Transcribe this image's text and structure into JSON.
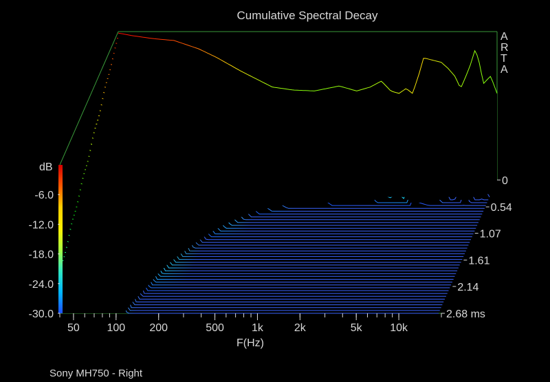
{
  "chart_data": {
    "type": "waterfall",
    "title": "Cumulative Spectral Decay",
    "watermark": "ARTA",
    "xlabel": "F(Hz)",
    "x_scale": "log",
    "x_ticks": [
      "50",
      "100",
      "200",
      "500",
      "1k",
      "2k",
      "5k",
      "10k"
    ],
    "x_tick_values": [
      50,
      100,
      200,
      500,
      1000,
      2000,
      5000,
      10000
    ],
    "xlim": [
      40,
      20000
    ],
    "ylabel": "dB",
    "y_ticks": [
      "-6.0",
      "-12.0",
      "-18.0",
      "-24.0",
      "-30.0"
    ],
    "y_tick_values": [
      -6,
      -12,
      -18,
      -24,
      -30
    ],
    "ylim": [
      -30,
      0
    ],
    "time_ticks": [
      "0",
      "0.54",
      "1.07",
      "1.61",
      "2.14",
      "2.68 ms"
    ],
    "time_tick_values": [
      0,
      0.54,
      1.07,
      1.61,
      2.14,
      2.68
    ],
    "time_unit": "ms",
    "time_range": [
      0,
      2.68
    ],
    "slice_count": 48,
    "first_slice": {
      "freq_hz": [
        40,
        50,
        70,
        100,
        150,
        200,
        300,
        500,
        700,
        1000,
        1500,
        2000,
        2500,
        3000,
        3500,
        4000,
        4500,
        5000,
        5500,
        6000,
        7000,
        8000,
        9000,
        10000,
        11000,
        12000,
        13000,
        14000,
        15000,
        16000,
        18000,
        20000
      ],
      "level_db": [
        -0.3,
        -0.8,
        -1.4,
        -1.8,
        -3.5,
        -5.2,
        -8.0,
        -11.2,
        -11.8,
        -12.0,
        -11.0,
        -12.0,
        -11.2,
        -10.0,
        -12.0,
        -12.5,
        -11.5,
        -12.5,
        -9.0,
        -5.3,
        -5.8,
        -6.2,
        -7.5,
        -9.0,
        -11.5,
        -9.0,
        -6.5,
        -3.5,
        -6.5,
        -10.5,
        -9.0,
        -12.5
      ]
    },
    "colormap": "dB level: red (high) to blue (-30 dB)",
    "colorbar_colors": [
      "#d40000",
      "#ff5a00",
      "#ffd000",
      "#fff000",
      "#a8ff40",
      "#30e8c0",
      "#00b8ff",
      "#2050ff"
    ],
    "floor_color": "#3a64ff",
    "frame_color": "#3a9a3a",
    "grid": false
  },
  "caption": "Sony MH750 - Right"
}
